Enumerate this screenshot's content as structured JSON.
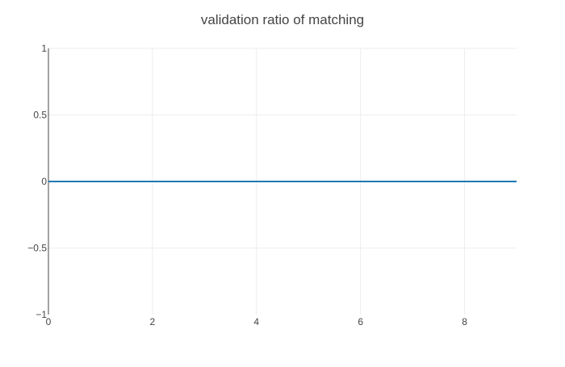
{
  "chart_data": {
    "type": "line",
    "title": "validation ratio of matching",
    "xlabel": "",
    "ylabel": "",
    "xlim": [
      0,
      9
    ],
    "ylim": [
      -1,
      1
    ],
    "x_ticks": [
      0,
      2,
      4,
      6,
      8
    ],
    "x_tick_labels": [
      "0",
      "2",
      "4",
      "6",
      "8"
    ],
    "y_ticks": [
      -1,
      -0.5,
      0,
      0.5,
      1
    ],
    "y_tick_labels": [
      "−1",
      "−0.5",
      "0",
      "0.5",
      "1"
    ],
    "grid": true,
    "legend": "none",
    "series": [
      {
        "color": "#1f77b4",
        "x": [
          0,
          1,
          2,
          3,
          4,
          5,
          6,
          7,
          8,
          9
        ],
        "y": [
          0,
          0,
          0,
          0,
          0,
          0,
          0,
          0,
          0,
          0
        ]
      }
    ]
  },
  "colors": {
    "grid": "#eeeeee",
    "axis": "#444444",
    "text": "#444444"
  }
}
